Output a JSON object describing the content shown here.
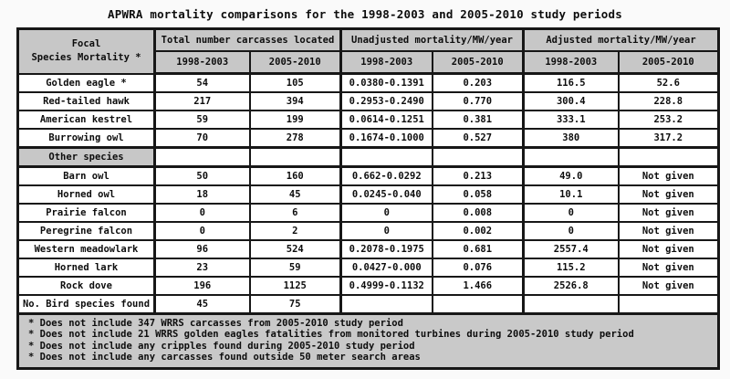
{
  "title": "APWRA mortality comparisons for the 1998-2003 and 2005-2010 study periods",
  "table": {
    "header": {
      "focal_line1": "Focal",
      "focal_line2": "Species Mortality *",
      "groups": [
        "Total number carcasses located",
        "Unadjusted mortality/MW/year",
        "Adjusted mortality/MW/year"
      ],
      "periods": [
        "1998-2003",
        "2005-2010",
        "1998-2003",
        "2005-2010",
        "1998-2003",
        "2005-2010"
      ]
    },
    "rows": [
      {
        "species": "Golden eagle *",
        "section": false,
        "values": [
          "54",
          "105",
          "0.0380-0.1391",
          "0.203",
          "116.5",
          "52.6"
        ]
      },
      {
        "species": "Red-tailed hawk",
        "section": false,
        "values": [
          "217",
          "394",
          "0.2953-0.2490",
          "0.770",
          "300.4",
          "228.8"
        ]
      },
      {
        "species": "American kestrel",
        "section": false,
        "values": [
          "59",
          "199",
          "0.0614-0.1251",
          "0.381",
          "333.1",
          "253.2"
        ]
      },
      {
        "species": "Burrowing owl",
        "section": false,
        "values": [
          "70",
          "278",
          "0.1674-0.1000",
          "0.527",
          "380",
          "317.2"
        ]
      },
      {
        "species": "Other species",
        "section": true,
        "values": [
          "",
          "",
          "",
          "",
          "",
          ""
        ]
      },
      {
        "species": "Barn owl",
        "section": false,
        "values": [
          "50",
          "160",
          "0.662-0.0292",
          "0.213",
          "49.0",
          "Not given"
        ]
      },
      {
        "species": "Horned owl",
        "section": false,
        "values": [
          "18",
          "45",
          "0.0245-0.040",
          "0.058",
          "10.1",
          "Not given"
        ]
      },
      {
        "species": "Prairie falcon",
        "section": false,
        "values": [
          "0",
          "6",
          "0",
          "0.008",
          "0",
          "Not given"
        ]
      },
      {
        "species": "Peregrine falcon",
        "section": false,
        "values": [
          "0",
          "2",
          "0",
          "0.002",
          "0",
          "Not given"
        ]
      },
      {
        "species": "Western meadowlark",
        "section": false,
        "values": [
          "96",
          "524",
          "0.2078-0.1975",
          "0.681",
          "2557.4",
          "Not given"
        ]
      },
      {
        "species": "Horned lark",
        "section": false,
        "values": [
          "23",
          "59",
          "0.0427-0.000",
          "0.076",
          "115.2",
          "Not given"
        ]
      },
      {
        "species": "Rock dove",
        "section": false,
        "values": [
          "196",
          "1125",
          "0.4999-0.1132",
          "1.466",
          "2526.8",
          "Not given"
        ]
      },
      {
        "species": "No. Bird species found",
        "section": false,
        "values": [
          "45",
          "75",
          "",
          "",
          "",
          ""
        ]
      }
    ],
    "footnotes": [
      "* Does not include 347 WRRS carcasses from 2005-2010 study period",
      "* Does not include 21 WRRS golden eagles fatalities from monitored turbines during 2005-2010 study period",
      "* Does not include any cripples found during 2005-2010 study period",
      "* Does not include any carcasses found outside 50 meter search areas"
    ]
  },
  "colors": {
    "header_bg": "#c7c7c7",
    "section_bg": "#c7c7c7",
    "footnote_bg": "#c9c9c9",
    "border": "#171717"
  }
}
